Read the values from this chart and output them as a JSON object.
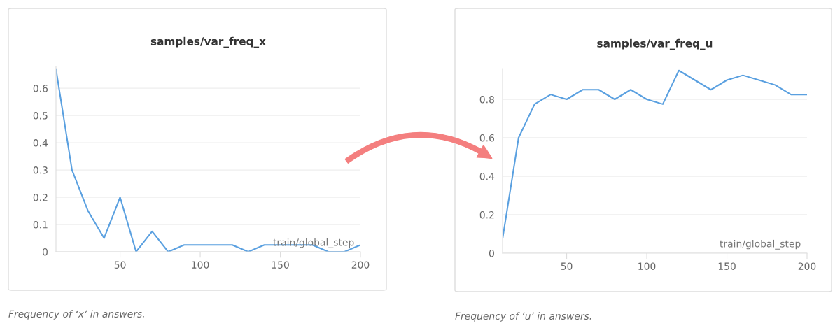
{
  "chart_data": [
    {
      "type": "line",
      "title": "samples/var_freq_x",
      "xlabel": "train/global_step",
      "x": [
        10,
        20,
        30,
        40,
        50,
        60,
        70,
        80,
        90,
        100,
        110,
        120,
        130,
        140,
        150,
        160,
        170,
        180,
        190,
        200
      ],
      "series": [
        {
          "color": "#5aa0e0",
          "values": [
            0.67,
            0.3,
            0.15,
            0.05,
            0.2,
            0,
            0.075,
            0,
            0.025,
            0.025,
            0.025,
            0.025,
            0,
            0.025,
            0.025,
            0.025,
            0.025,
            0,
            0,
            0.025
          ]
        }
      ],
      "xlim": [
        10,
        200
      ],
      "xticks": [
        50,
        100,
        150,
        200
      ],
      "ylim": [
        0,
        0.68
      ],
      "yticks": [
        0,
        0.1,
        0.2,
        0.3,
        0.4,
        0.5,
        0.6
      ],
      "grid": "y",
      "legend": false,
      "annotations": [
        "Frequency of ‘x’ in answers."
      ]
    },
    {
      "type": "line",
      "title": "samples/var_freq_u",
      "xlabel": "train/global_step",
      "x": [
        10,
        20,
        30,
        40,
        50,
        60,
        70,
        80,
        90,
        100,
        110,
        120,
        130,
        140,
        150,
        160,
        170,
        180,
        190,
        200
      ],
      "series": [
        {
          "color": "#5aa0e0",
          "values": [
            0.075,
            0.6,
            0.775,
            0.825,
            0.8,
            0.85,
            0.85,
            0.8,
            0.85,
            0.8,
            0.775,
            0.95,
            0.9,
            0.85,
            0.9,
            0.925,
            0.9,
            0.875,
            0.825,
            0.825
          ]
        }
      ],
      "xlim": [
        10,
        200
      ],
      "xticks": [
        50,
        100,
        150,
        200
      ],
      "ylim": [
        0,
        0.96
      ],
      "yticks": [
        0,
        0.2,
        0.4,
        0.6,
        0.8
      ],
      "grid": "y",
      "legend": false,
      "annotations": [
        "Frequency of ‘u’ in answers."
      ]
    }
  ]
}
